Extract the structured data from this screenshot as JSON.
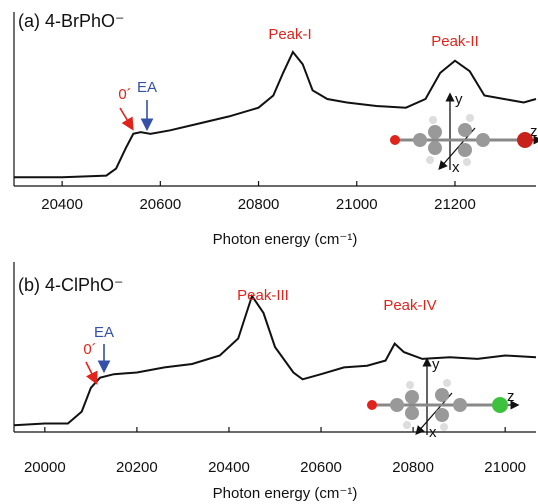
{
  "chart_data": [
    {
      "type": "line",
      "title": "(a) 4-BrPhO⁻",
      "x_label": "Photon energy (cm⁻¹)",
      "xlim": [
        20302,
        21365
      ],
      "xticks": [
        20400,
        20600,
        20800,
        21000,
        21200
      ],
      "ylim": [
        0,
        1
      ],
      "x": [
        20302,
        20400,
        20490,
        20510,
        20530,
        20545,
        20560,
        20580,
        20620,
        20680,
        20740,
        20800,
        20830,
        20850,
        20870,
        20890,
        20910,
        20940,
        20980,
        21040,
        21100,
        21140,
        21170,
        21200,
        21230,
        21260,
        21300,
        21340,
        21365
      ],
      "series": [
        {
          "color": "#111111",
          "values": [
            0.05,
            0.05,
            0.06,
            0.1,
            0.22,
            0.3,
            0.31,
            0.3,
            0.32,
            0.36,
            0.4,
            0.45,
            0.52,
            0.65,
            0.77,
            0.7,
            0.55,
            0.5,
            0.48,
            0.46,
            0.45,
            0.5,
            0.65,
            0.72,
            0.66,
            0.52,
            0.5,
            0.48,
            0.5
          ]
        }
      ],
      "annotations": [
        "0´",
        "EA",
        "Peak-I",
        "Peak-II"
      ]
    },
    {
      "type": "line",
      "title": "(b) 4-ClPhO⁻",
      "x_label": "Photon energy (cm⁻¹)",
      "xlim": [
        19933,
        21067
      ],
      "xticks": [
        20000,
        20200,
        20400,
        20600,
        20800,
        21000
      ],
      "ylim": [
        0,
        1
      ],
      "x": [
        19933,
        20000,
        20050,
        20080,
        20100,
        20120,
        20150,
        20200,
        20260,
        20320,
        20380,
        20420,
        20450,
        20475,
        20500,
        20540,
        20560,
        20600,
        20650,
        20700,
        20740,
        20760,
        20780,
        20820,
        20880,
        20940,
        21000,
        21067
      ],
      "series": [
        {
          "color": "#111111",
          "values": [
            0.04,
            0.05,
            0.05,
            0.12,
            0.26,
            0.32,
            0.34,
            0.35,
            0.38,
            0.4,
            0.45,
            0.55,
            0.8,
            0.7,
            0.5,
            0.35,
            0.31,
            0.34,
            0.38,
            0.39,
            0.42,
            0.52,
            0.47,
            0.43,
            0.44,
            0.43,
            0.45,
            0.44
          ]
        }
      ],
      "annotations": [
        "0´",
        "EA",
        "Peak-III",
        "Peak-IV"
      ]
    }
  ]
}
